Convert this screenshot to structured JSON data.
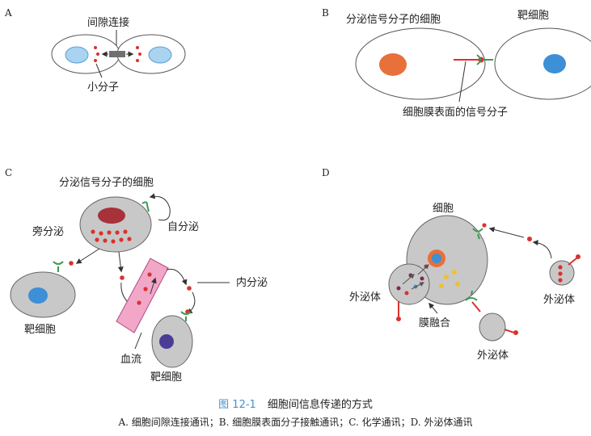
{
  "panels": {
    "a": {
      "letter": "A",
      "gap_junction_label": "间隙连接",
      "small_molecule_label": "小分子"
    },
    "b": {
      "letter": "B",
      "signal_cell_label": "分泌信号分子的细胞",
      "target_cell_label": "靶细胞",
      "surface_signal_label": "细胞膜表面的信号分子"
    },
    "c": {
      "letter": "C",
      "signal_cell_label": "分泌信号分子的细胞",
      "autocrine_label": "自分泌",
      "paracrine_label": "旁分泌",
      "endocrine_label": "内分泌",
      "target_cell_left_label": "靶细胞",
      "target_cell_right_label": "靶细胞",
      "blood_flow_label": "血流"
    },
    "d": {
      "letter": "D",
      "cell_label": "细胞",
      "exosome_left_label": "外泌体",
      "exosome_right_label": "外泌体",
      "exosome_bottom_label": "外泌体",
      "membrane_fusion_label": "膜融合"
    }
  },
  "caption": {
    "figure_number": "图 12-1",
    "title": "细胞间信息传递的方式",
    "subtitle": "A. 细胞间隙连接通讯；B. 细胞膜表面分子接触通讯；C. 化学通讯；D. 外泌体通讯"
  },
  "colors": {
    "signal_red": "#d9322e",
    "receptor_green": "#3a9a52",
    "gray_cell": "#c8c8c8",
    "blue_nucleus": "#3d8fd6",
    "orange_nucleus": "#e8703a",
    "dark_red_nucleus": "#a8323a",
    "blood_vessel_pink": "#f2a6c8",
    "caption_blue": "#4a90c8"
  }
}
